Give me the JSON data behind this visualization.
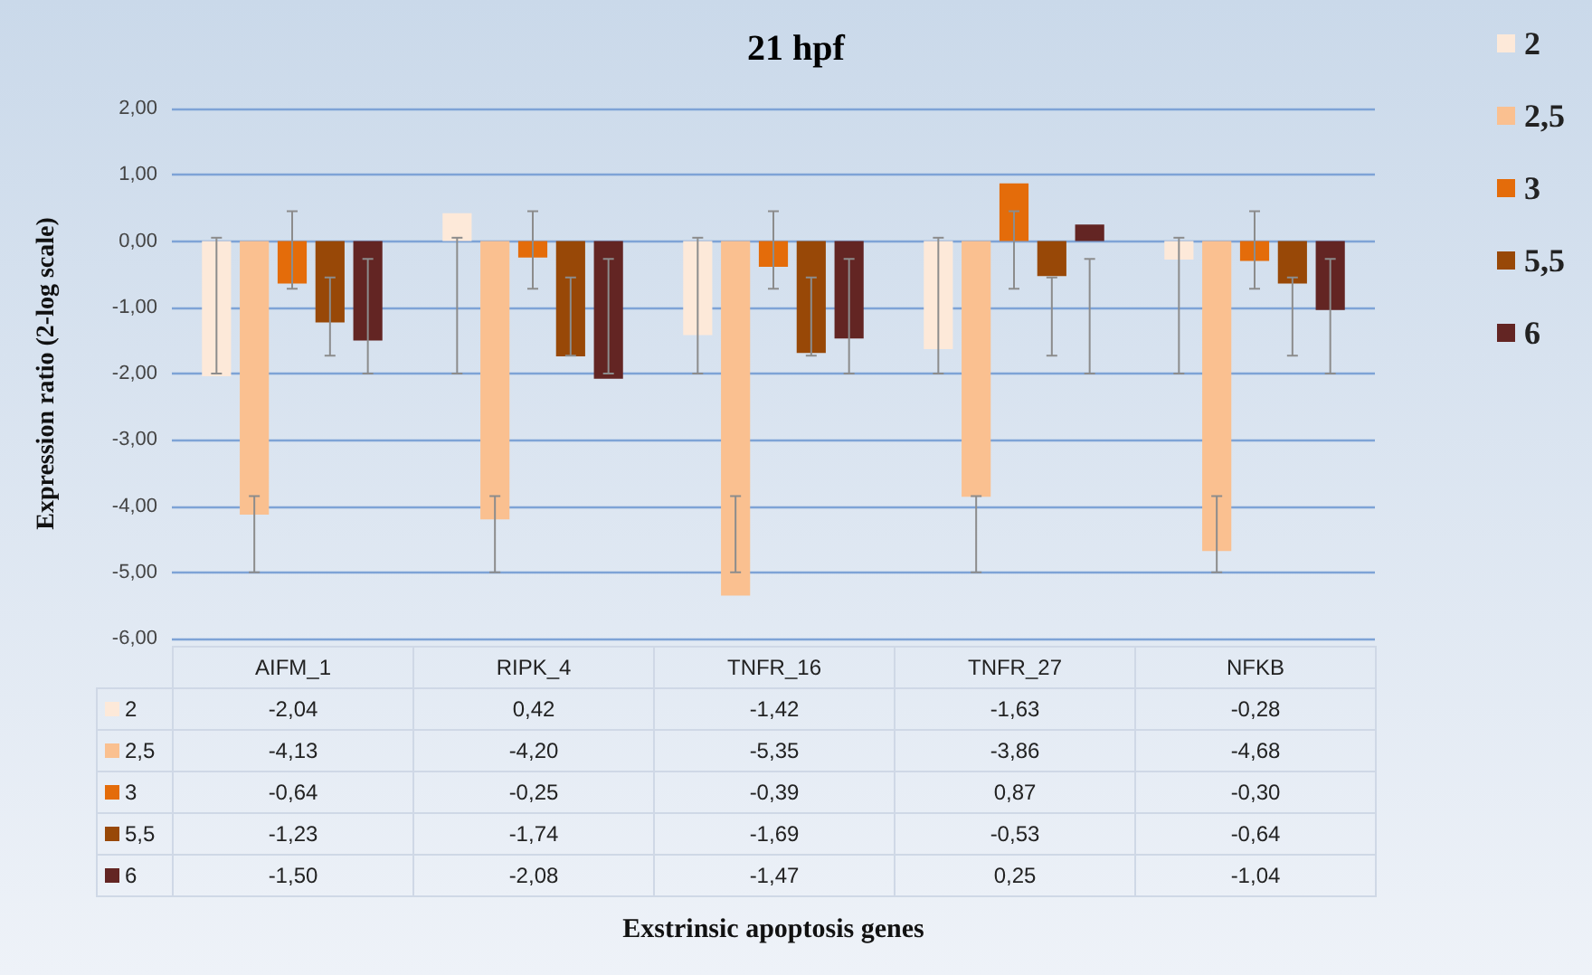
{
  "chart_data": {
    "type": "bar",
    "title": "21 hpf",
    "annotations": [
      "Exstrinsic apoptosis genes"
    ],
    "ylabel": "Expression ratio (2-log scale)",
    "categories": [
      "AIFM_1",
      "RIPK_4",
      "TNFR_16",
      "TNFR_27",
      "NFKB"
    ],
    "series": [
      {
        "name": "2",
        "color": "#fde9d9",
        "values": [
          -2.04,
          0.42,
          -1.42,
          -1.63,
          -0.28
        ],
        "value_labels": [
          "-2,04",
          "0,42",
          "-1,42",
          "-1,63",
          "-0,28"
        ],
        "errors": [
          [
            -2.0,
            0.05
          ],
          [
            -2.0,
            0.05
          ],
          [
            -2.0,
            0.05
          ],
          [
            -2.0,
            0.05
          ],
          [
            -2.0,
            0.05
          ]
        ]
      },
      {
        "name": "2,5",
        "color": "#fac090",
        "values": [
          -4.13,
          -4.2,
          -5.35,
          -3.86,
          -4.68
        ],
        "value_labels": [
          "-4,13",
          "-4,20",
          "-5,35",
          "-3,86",
          "-4,68"
        ],
        "errors": [
          [
            -5.0,
            -3.85
          ],
          [
            -5.0,
            -3.85
          ],
          [
            -5.0,
            -3.85
          ],
          [
            -5.0,
            -3.85
          ],
          [
            -5.0,
            -3.85
          ]
        ]
      },
      {
        "name": "3",
        "color": "#e46c0a",
        "values": [
          -0.64,
          -0.25,
          -0.39,
          0.87,
          -0.3
        ],
        "value_labels": [
          "-0,64",
          "-0,25",
          "-0,39",
          "0,87",
          "-0,30"
        ],
        "errors": [
          [
            -0.72,
            0.45
          ],
          [
            -0.72,
            0.45
          ],
          [
            -0.72,
            0.45
          ],
          [
            -0.72,
            0.45
          ],
          [
            -0.72,
            0.45
          ]
        ]
      },
      {
        "name": "5,5",
        "color": "#984807",
        "values": [
          -1.23,
          -1.74,
          -1.69,
          -0.53,
          -0.64
        ],
        "value_labels": [
          "-1,23",
          "-1,74",
          "-1,69",
          "-0,53",
          "-0,64"
        ],
        "errors": [
          [
            -1.73,
            -0.55
          ],
          [
            -1.73,
            -0.55
          ],
          [
            -1.73,
            -0.55
          ],
          [
            -1.73,
            -0.55
          ],
          [
            -1.73,
            -0.55
          ]
        ]
      },
      {
        "name": "6",
        "color": "#632523",
        "values": [
          -1.5,
          -2.08,
          -1.47,
          0.25,
          -1.04
        ],
        "value_labels": [
          "-1,50",
          "-2,08",
          "-1,47",
          "0,25",
          "-1,04"
        ],
        "errors": [
          [
            -2.0,
            -0.27
          ],
          [
            -2.0,
            -0.27
          ],
          [
            -2.0,
            -0.27
          ],
          [
            -2.0,
            -0.27
          ],
          [
            -2.0,
            -0.27
          ]
        ]
      }
    ],
    "ylim": [
      -6,
      2
    ],
    "yticks": [
      {
        "value": -6,
        "label": "-6,00"
      },
      {
        "value": -5,
        "label": "-5,00"
      },
      {
        "value": -4,
        "label": "-4,00"
      },
      {
        "value": -3,
        "label": "-3,00"
      },
      {
        "value": -2,
        "label": "-2,00"
      },
      {
        "value": -1,
        "label": "-1,00"
      },
      {
        "value": 0,
        "label": "0,00"
      },
      {
        "value": 1,
        "label": "1,00"
      },
      {
        "value": 2,
        "label": "2,00"
      }
    ],
    "grid": "y",
    "legend": "right"
  }
}
